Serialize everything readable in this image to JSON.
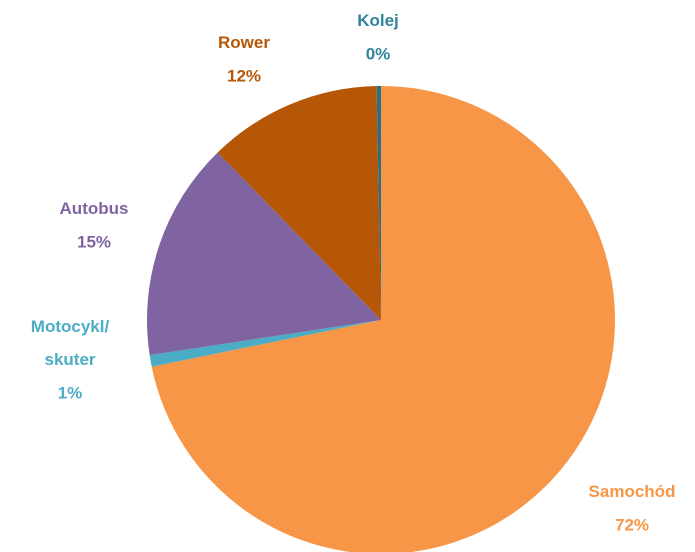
{
  "chart_data": {
    "type": "pie",
    "categories": [
      "Samochód",
      "Motocykl/\nskuter",
      "Autobus",
      "Rower",
      "Kolej"
    ],
    "values": [
      71.8,
      0.8,
      15.1,
      12.0,
      0.3
    ],
    "value_labels": [
      "72%",
      "1%",
      "15%",
      "12%",
      "0%"
    ],
    "colors": [
      "#f79646",
      "#4bacc6",
      "#8064a2",
      "#b65708",
      "#2a6f86"
    ]
  }
}
